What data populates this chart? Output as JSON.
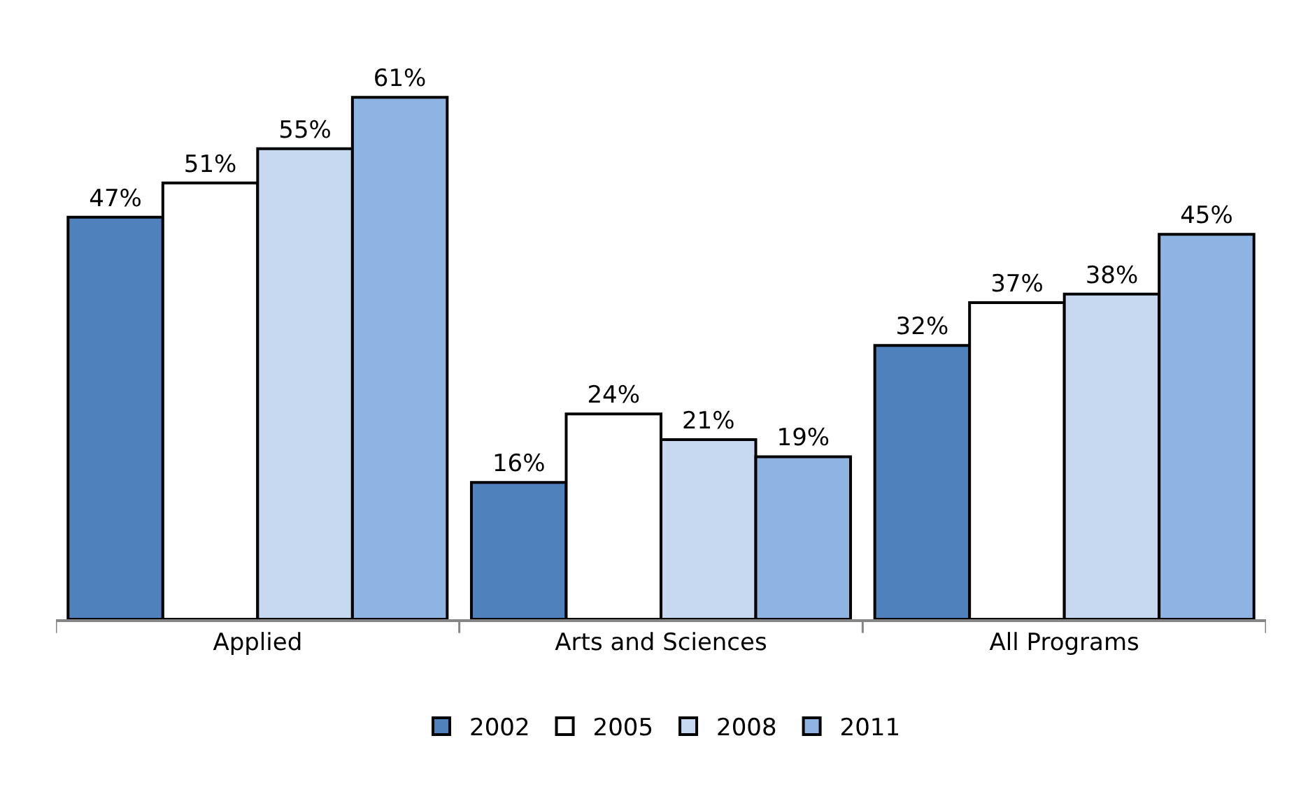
{
  "chart_data": {
    "type": "bar",
    "categories": [
      "Applied",
      "Arts and Sciences",
      "All Programs"
    ],
    "series": [
      {
        "name": "2002",
        "color": "#4f81bd",
        "values": [
          47,
          16,
          32
        ],
        "value_labels": [
          "47%",
          "16%",
          "32%"
        ]
      },
      {
        "name": "2005",
        "color": "#ffffff",
        "values": [
          51,
          24,
          37
        ],
        "value_labels": [
          "51%",
          "24%",
          "37%"
        ]
      },
      {
        "name": "2008",
        "color": "#c6d9f1",
        "values": [
          55,
          21,
          38
        ],
        "value_labels": [
          "55%",
          "21%",
          "38%"
        ]
      },
      {
        "name": "2011",
        "color": "#8eb4e3",
        "values": [
          61,
          19,
          45
        ],
        "value_labels": [
          "61%",
          "19%",
          "45%"
        ]
      }
    ],
    "legend": "bottom"
  }
}
